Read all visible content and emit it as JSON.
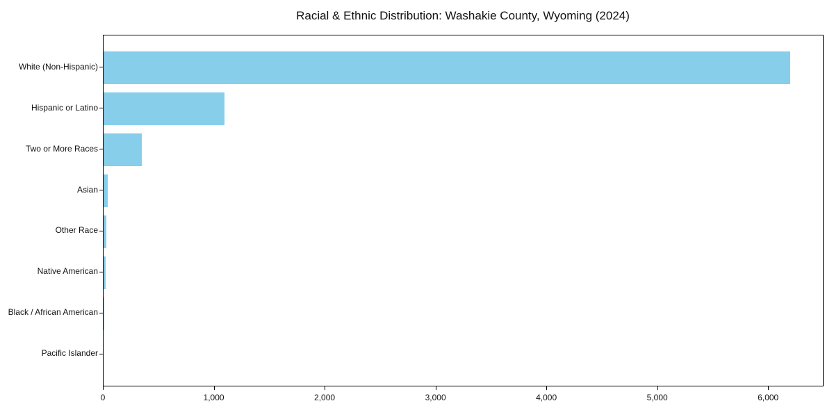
{
  "chart_data": {
    "type": "bar",
    "orientation": "horizontal",
    "title": "Racial & Ethnic Distribution: Washakie County, Wyoming (2024)",
    "categories": [
      "White (Non-Hispanic)",
      "Hispanic or Latino",
      "Two or More Races",
      "Asian",
      "Other Race",
      "Native American",
      "Black / African American",
      "Pacific Islander"
    ],
    "values": [
      6190,
      1090,
      345,
      38,
      27,
      19,
      5,
      0
    ],
    "xlabel": "",
    "ylabel": "",
    "xlim": [
      0,
      6500
    ],
    "x_ticks": [
      0,
      1000,
      2000,
      3000,
      4000,
      5000,
      6000
    ],
    "x_tick_labels": [
      "0",
      "1,000",
      "2,000",
      "3,000",
      "4,000",
      "5,000",
      "6,000"
    ],
    "bar_color": "#87CEEB",
    "background_color": "#ffffff",
    "grid": false,
    "legend_position": "none"
  }
}
